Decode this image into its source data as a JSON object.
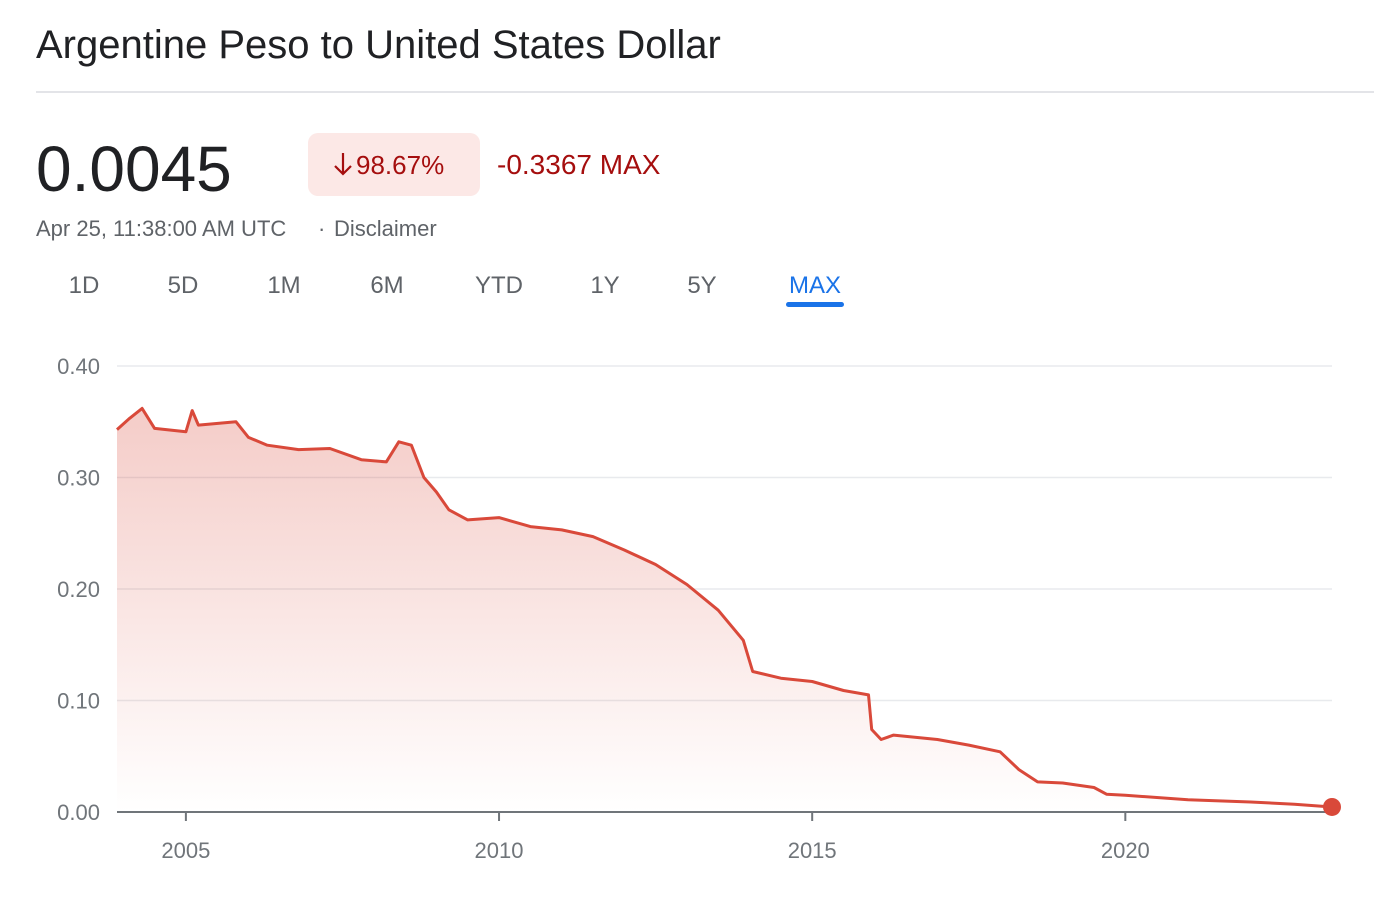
{
  "header": {
    "title": "Argentine Peso to United States Dollar",
    "price": "0.0045",
    "change_percent": "98.67%",
    "change_amount": "-0.3367 MAX",
    "timestamp": "Apr 25, 11:38:00 AM UTC",
    "disclaimer": "Disclaimer"
  },
  "tabs": {
    "items": [
      "1D",
      "5D",
      "1M",
      "6M",
      "YTD",
      "1Y",
      "5Y",
      "MAX"
    ],
    "active": 7
  },
  "chart_data": {
    "type": "area-line",
    "color": "#d9493a",
    "grid": true,
    "x": [
      2003.9,
      2004.1,
      2004.3,
      2004.5,
      2005.0,
      2005.1,
      2005.2,
      2005.8,
      2006.0,
      2006.3,
      2006.8,
      2007.3,
      2007.8,
      2008.2,
      2008.4,
      2008.6,
      2008.8,
      2009.0,
      2009.2,
      2009.5,
      2010.0,
      2010.5,
      2011.0,
      2011.5,
      2012.0,
      2012.5,
      2013.0,
      2013.5,
      2013.9,
      2014.05,
      2014.5,
      2015.0,
      2015.5,
      2015.9,
      2015.95,
      2016.1,
      2016.3,
      2017.0,
      2017.5,
      2018.0,
      2018.3,
      2018.6,
      2019.0,
      2019.5,
      2019.7,
      2020.0,
      2021.0,
      2022.0,
      2022.7,
      2023.3
    ],
    "values": [
      0.343,
      0.353,
      0.362,
      0.344,
      0.341,
      0.36,
      0.347,
      0.35,
      0.336,
      0.329,
      0.325,
      0.326,
      0.316,
      0.314,
      0.332,
      0.329,
      0.3,
      0.287,
      0.271,
      0.262,
      0.264,
      0.256,
      0.253,
      0.247,
      0.235,
      0.222,
      0.204,
      0.181,
      0.154,
      0.126,
      0.12,
      0.117,
      0.109,
      0.105,
      0.074,
      0.065,
      0.069,
      0.065,
      0.06,
      0.054,
      0.038,
      0.027,
      0.026,
      0.022,
      0.016,
      0.015,
      0.011,
      0.009,
      0.007,
      0.0045
    ],
    "xlim": [
      2003.9,
      2023.3
    ],
    "xticks": [
      2005,
      2010,
      2015,
      2020
    ],
    "ylim": [
      0,
      0.4
    ],
    "yticks": [
      {
        "value": 0,
        "label": "0.00"
      },
      {
        "value": 0.1,
        "label": "0.10"
      },
      {
        "value": 0.2,
        "label": "0.20"
      },
      {
        "value": 0.3,
        "label": "0.30"
      },
      {
        "value": 0.4,
        "label": "0.40"
      }
    ]
  }
}
